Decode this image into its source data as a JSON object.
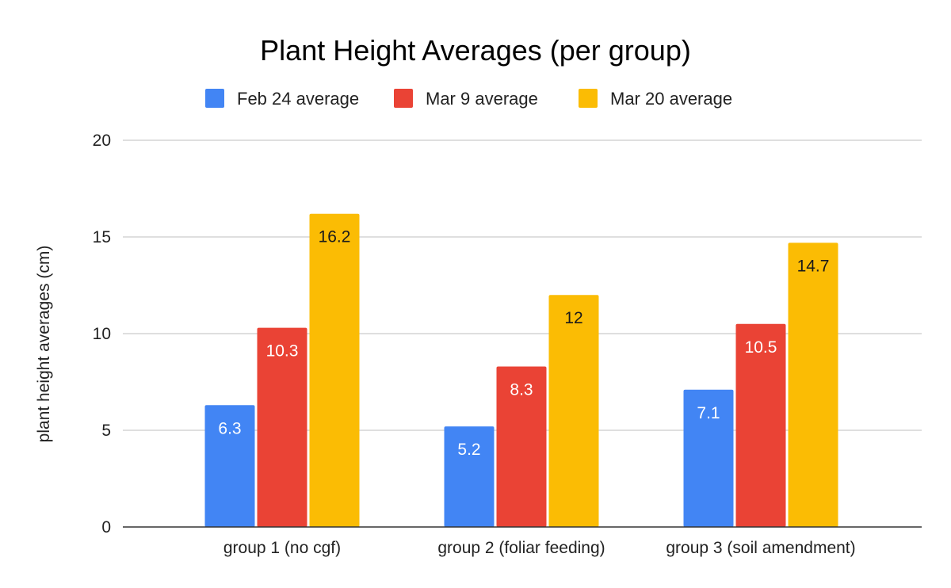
{
  "chart_data": {
    "type": "bar",
    "title": "Plant Height Averages (per group)",
    "xlabel": "",
    "ylabel": "plant height averages (cm)",
    "ylim": [
      0,
      20
    ],
    "yticks": [
      0,
      5,
      10,
      15,
      20
    ],
    "grid": true,
    "legend_position": "top-center",
    "categories": [
      "group 1 (no cgf)",
      "group 2 (foliar feeding)",
      "group 3 (soil amendment)"
    ],
    "series": [
      {
        "name": "Feb 24 average",
        "values": [
          6.3,
          5.2,
          7.1
        ],
        "color": "#4285f4",
        "label_color": "#ffffff"
      },
      {
        "name": "Mar 9 average",
        "values": [
          10.3,
          8.3,
          10.5
        ],
        "color": "#ea4335",
        "label_color": "#ffffff"
      },
      {
        "name": "Mar 20 average",
        "values": [
          16.2,
          12,
          14.7
        ],
        "color": "#fbbc04",
        "label_color": "#1a1a1a"
      }
    ]
  }
}
